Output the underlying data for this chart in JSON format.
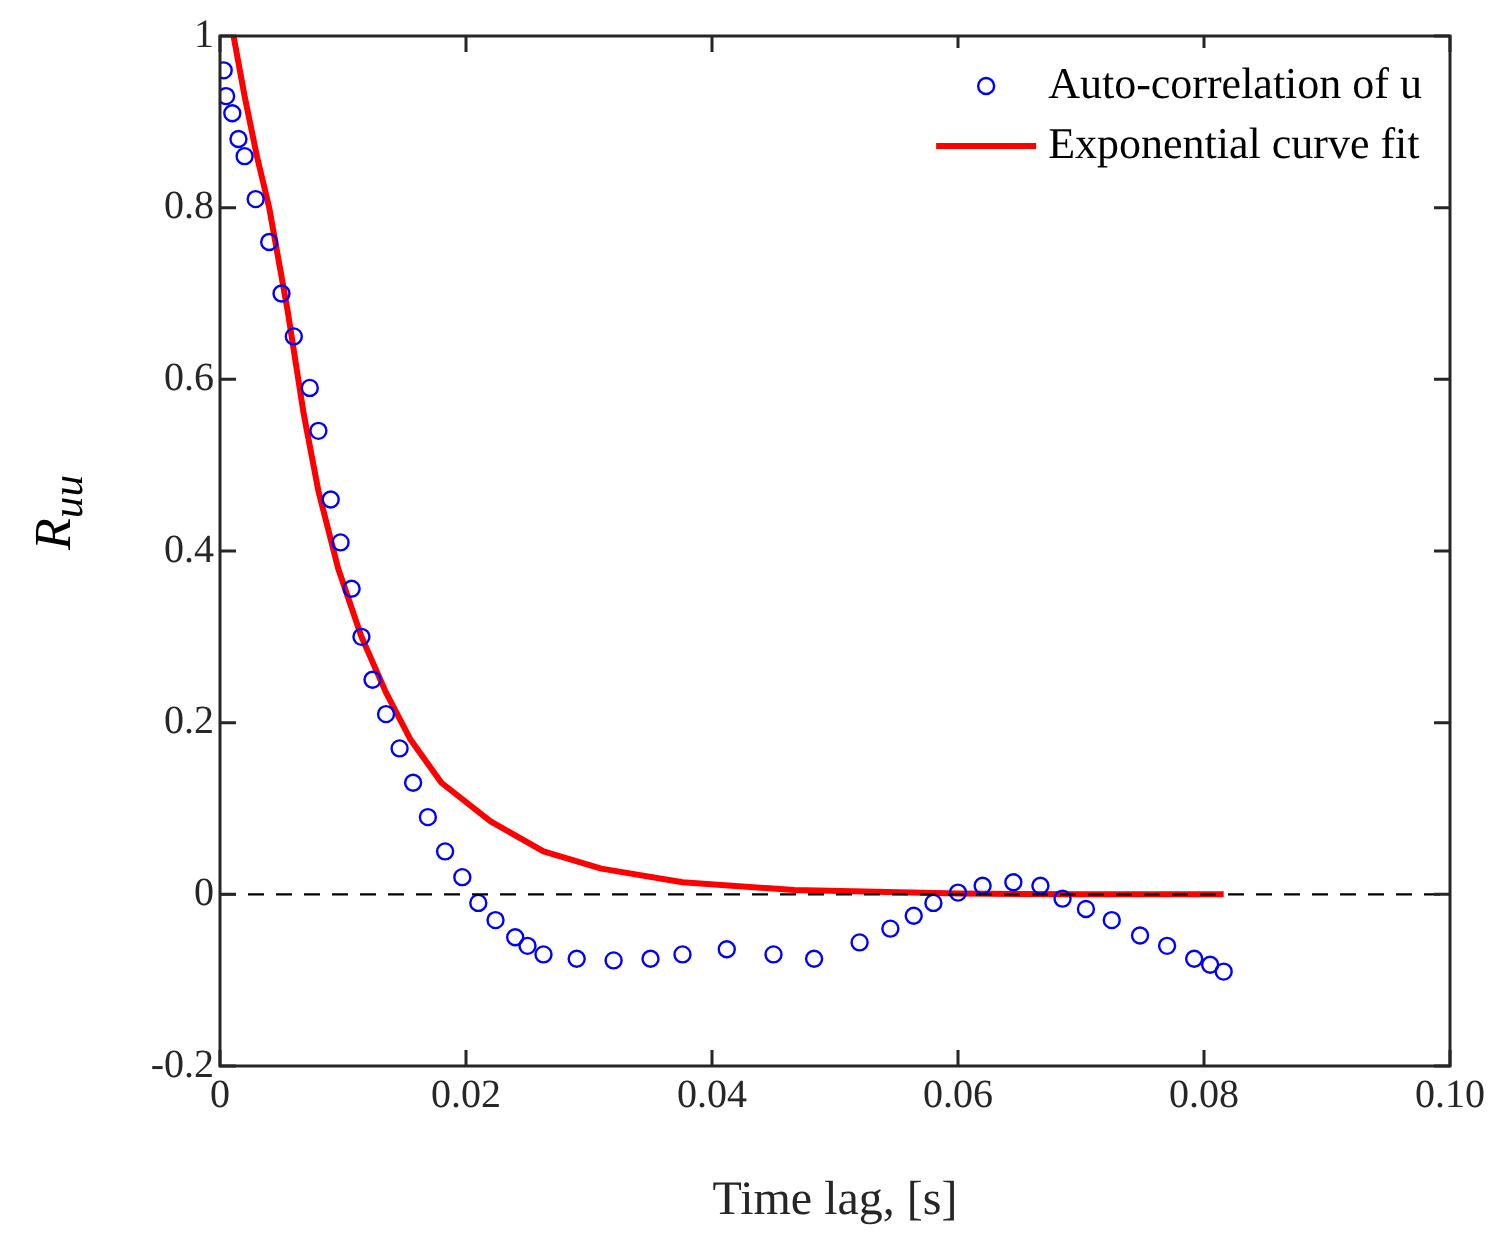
{
  "chart_data": {
    "type": "scatter",
    "xlabel": "Time lag, [s]",
    "ylabel": "R$_{uu}$",
    "xlim": [
      0,
      0.1
    ],
    "xticks": [
      0,
      0.02,
      0.04,
      0.06,
      {
        "value": 0.1,
        "label": "0.10"
      },
      0.08
    ],
    "ylim": [
      -0.2,
      1
    ],
    "yticks": [
      -0.2,
      0,
      0.2,
      0.4,
      0.6,
      0.8,
      1
    ],
    "grid": false,
    "legend": "top right",
    "marker": "circle",
    "ref_lines": [
      {
        "axis": "y",
        "value": 0,
        "color": "#000000",
        "line_style": "dashed"
      }
    ],
    "series": [
      {
        "name": "Auto-correlation of u",
        "color": "#0000ff",
        "x": [
          0.0003,
          0.0005,
          0.001,
          0.0015,
          0.002,
          0.0029,
          0.004,
          0.005,
          0.006,
          0.0073,
          0.008,
          0.009,
          0.0098,
          0.0107,
          0.0115,
          0.0124,
          0.0135,
          0.0146,
          0.0157,
          0.0169,
          0.0183,
          0.0197,
          0.021,
          0.0224,
          0.024,
          0.025,
          0.0263,
          0.029,
          0.032,
          0.035,
          0.0376,
          0.0412,
          0.045,
          0.0483,
          0.052,
          0.0545,
          0.0564,
          0.058,
          0.06,
          0.062,
          0.0645,
          0.0667,
          0.0685,
          0.0704,
          0.0725,
          0.0748,
          0.077,
          0.0792,
          0.0805,
          0.0816
        ],
        "values": [
          0.96,
          0.93,
          0.91,
          0.88,
          0.86,
          0.81,
          0.76,
          0.7,
          0.65,
          0.59,
          0.54,
          0.46,
          0.41,
          0.356,
          0.3,
          0.25,
          0.21,
          0.17,
          0.13,
          0.09,
          0.05,
          0.02,
          -0.01,
          -0.03,
          -0.05,
          -0.06,
          -0.07,
          -0.075,
          -0.077,
          -0.075,
          -0.07,
          -0.064,
          -0.07,
          -0.075,
          -0.056,
          -0.04,
          -0.025,
          -0.01,
          0.002,
          0.01,
          0.014,
          0.01,
          -0.005,
          -0.017,
          -0.03,
          -0.048,
          -0.06,
          -0.075,
          -0.082,
          -0.09
        ]
      },
      {
        "name": "Exponential curve fit",
        "type": "line",
        "color": "#ff0000",
        "line_style": "solid",
        "marker": "none",
        "x": [
          0.0011,
          0.002,
          0.003,
          0.004,
          0.0055,
          0.0068,
          0.008,
          0.0096,
          0.0115,
          0.0135,
          0.0155,
          0.018,
          0.022,
          0.0263,
          0.031,
          0.0376,
          0.0467,
          0.06,
          0.07,
          0.0816
        ],
        "values": [
          1.0,
          0.93,
          0.86,
          0.8,
          0.68,
          0.56,
          0.47,
          0.38,
          0.3,
          0.235,
          0.18,
          0.13,
          0.085,
          0.05,
          0.03,
          0.014,
          0.005,
          0.001,
          0,
          0
        ]
      }
    ]
  }
}
